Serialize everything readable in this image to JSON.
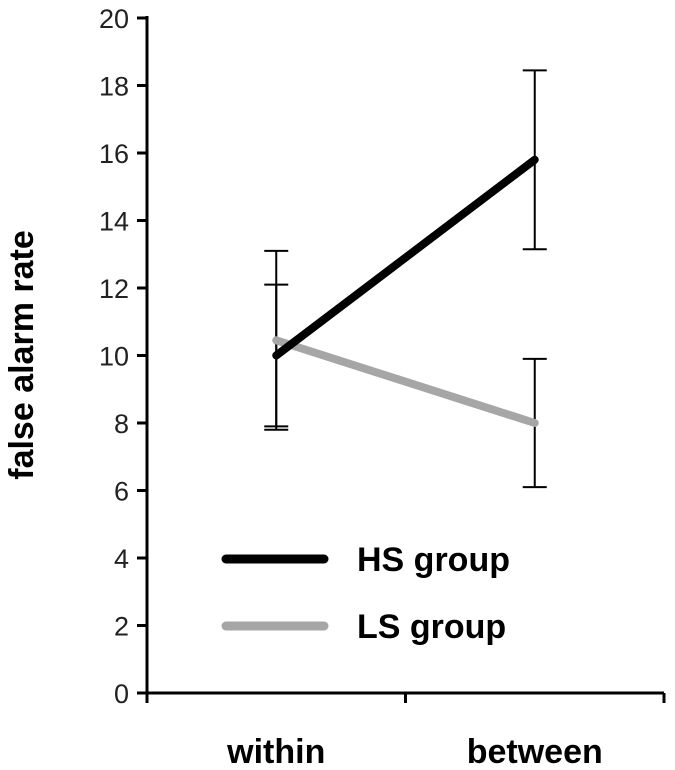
{
  "chart_data": {
    "type": "line",
    "title": "",
    "xlabel": "",
    "ylabel": "false alarm rate",
    "categories": [
      "within",
      "between"
    ],
    "ylim": [
      0,
      20
    ],
    "yticks": [
      0,
      2,
      4,
      6,
      8,
      10,
      12,
      14,
      16,
      18,
      20
    ],
    "grid": false,
    "legend_position": "bottom-center",
    "series": [
      {
        "name": "HS group",
        "color": "#000000",
        "values": [
          10.0,
          15.8
        ],
        "error_low": [
          7.9,
          13.15
        ],
        "error_high": [
          12.1,
          18.45
        ]
      },
      {
        "name": "LS group",
        "color": "#a6a6a6",
        "values": [
          10.45,
          8.0
        ],
        "error_low": [
          7.8,
          6.1
        ],
        "error_high": [
          13.1,
          9.9
        ]
      }
    ]
  }
}
